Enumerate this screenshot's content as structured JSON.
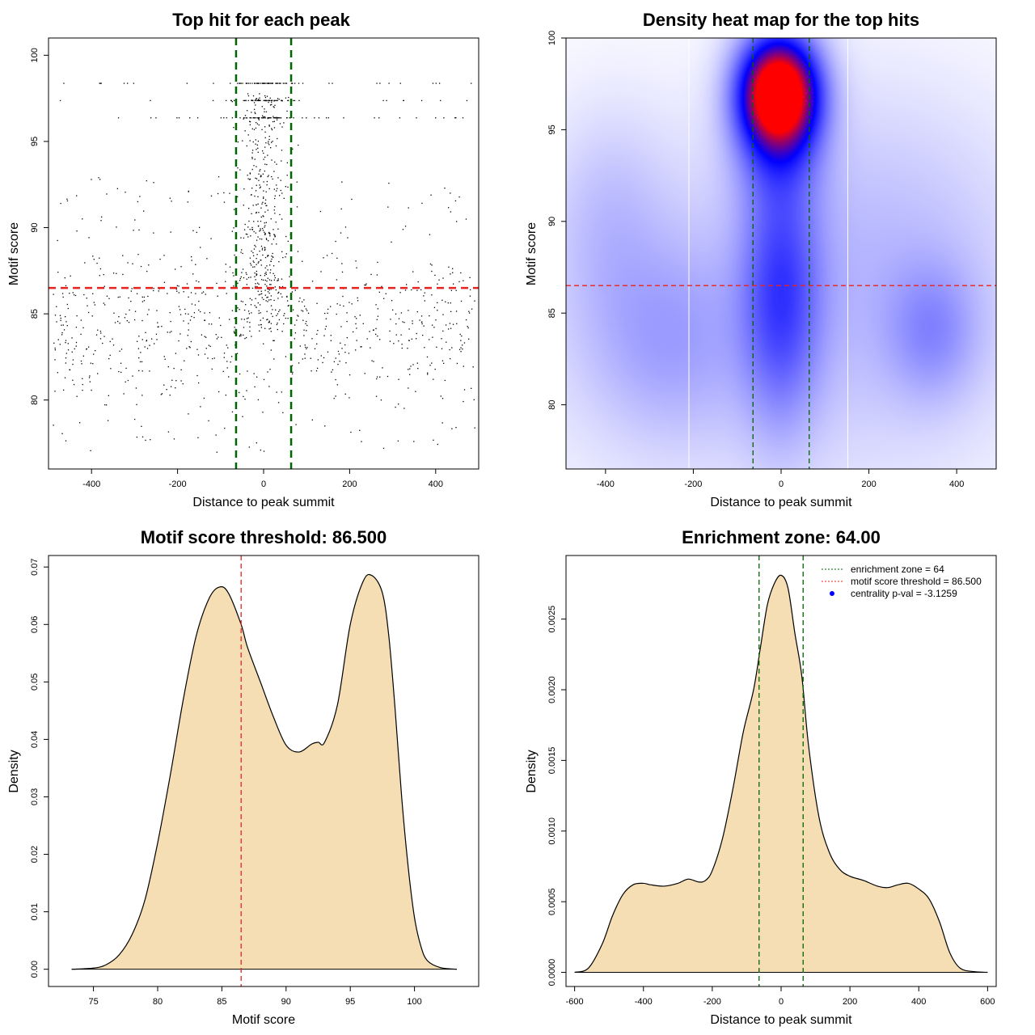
{
  "chart_data": [
    {
      "id": "scatter",
      "type": "scatter",
      "title": "Top hit for each peak",
      "xlabel": "Distance to peak summit",
      "ylabel": "Motif score",
      "xlim": [
        -500,
        500
      ],
      "ylim": [
        76,
        101
      ],
      "xticks": [
        -400,
        -200,
        0,
        200,
        400
      ],
      "yticks": [
        80,
        85,
        90,
        95,
        100
      ],
      "xtick_labels": [
        "-400",
        "-200",
        "0",
        "200",
        "400"
      ],
      "ytick_labels": [
        "80",
        "85",
        "90",
        "95",
        "100"
      ],
      "vlines": [
        -64,
        64
      ],
      "hline": 86.5,
      "point_model": {
        "n_points": 1500,
        "x_range": [
          -490,
          490
        ],
        "y_background_range": [
          77,
          93
        ],
        "central_cluster_x_range": [
          -64,
          64
        ],
        "central_cluster_y_range": [
          84,
          98
        ],
        "high_score_rows": [
          96.4,
          97.4,
          98.4
        ],
        "seed": 7
      },
      "colors": {
        "points": "#000000",
        "vlines": "#006400",
        "hline": "#e8231f"
      }
    },
    {
      "id": "heatmap",
      "type": "heatmap",
      "title": "Density heat map for the top hits",
      "xlabel": "Distance to peak summit",
      "ylabel": "Motif score",
      "xlim": [
        -490,
        490
      ],
      "ylim": [
        76.5,
        100
      ],
      "xticks": [
        -400,
        -200,
        0,
        200,
        400
      ],
      "yticks": [
        80,
        85,
        90,
        95,
        100
      ],
      "xtick_labels": [
        "-400",
        "-200",
        "0",
        "200",
        "400"
      ],
      "ytick_labels": [
        "80",
        "85",
        "90",
        "95",
        "100"
      ],
      "vlines": [
        -64,
        64
      ],
      "white_vlines": [
        -210,
        152
      ],
      "hline": 86.5,
      "density_blobs": [
        {
          "x": -5,
          "y": 97,
          "sx": 55,
          "sy": 1.8,
          "w": 1.0
        },
        {
          "x": -5,
          "y": 96,
          "sx": 65,
          "sy": 3.0,
          "w": 0.45
        },
        {
          "x": 0,
          "y": 86,
          "sx": 60,
          "sy": 4.5,
          "w": 0.32
        },
        {
          "x": 345,
          "y": 84,
          "sx": 70,
          "sy": 2.5,
          "w": 0.14
        },
        {
          "x": -260,
          "y": 83.5,
          "sx": 120,
          "sy": 3.5,
          "w": 0.1
        },
        {
          "x": -390,
          "y": 90,
          "sx": 90,
          "sy": 4.0,
          "w": 0.07
        },
        {
          "x": 250,
          "y": 89,
          "sx": 200,
          "sy": 6.0,
          "w": 0.05
        },
        {
          "x": 0,
          "y": 85,
          "sx": 420,
          "sy": 7.0,
          "w": 0.08
        }
      ],
      "colors": {
        "low": "#ffffff",
        "mid": "#0000ff",
        "high": "#ff0000",
        "vlines": "#006400",
        "hline": "#e8231f",
        "white_lines": "#ffffff"
      }
    },
    {
      "id": "density_score",
      "type": "area",
      "title": "Motif score threshold: 86.500",
      "xlabel": "Motif score",
      "ylabel": "Density",
      "xlim": [
        71.5,
        105
      ],
      "ylim": [
        -0.003,
        0.072
      ],
      "xticks": [
        75,
        80,
        85,
        90,
        95,
        100
      ],
      "yticks": [
        0,
        0.01,
        0.02,
        0.03,
        0.04,
        0.05,
        0.06,
        0.07
      ],
      "xtick_labels": [
        "75",
        "80",
        "85",
        "90",
        "95",
        "100"
      ],
      "ytick_labels": [
        "0.00",
        "0.01",
        "0.02",
        "0.03",
        "0.04",
        "0.05",
        "0.06",
        "0.07"
      ],
      "x": [
        73.3,
        75,
        76,
        77,
        78,
        79,
        80,
        81,
        82,
        83,
        84,
        84.8,
        85.5,
        86.5,
        87,
        88,
        89,
        90,
        91,
        92,
        92.5,
        93,
        94,
        95,
        96,
        96.7,
        97.5,
        98,
        98.5,
        99,
        99.5,
        100,
        100.5,
        101,
        102,
        103.3
      ],
      "y": [
        0,
        0.0002,
        0.0008,
        0.0025,
        0.006,
        0.012,
        0.022,
        0.034,
        0.047,
        0.058,
        0.0645,
        0.0665,
        0.0655,
        0.06,
        0.056,
        0.05,
        0.044,
        0.039,
        0.0378,
        0.0392,
        0.0395,
        0.0395,
        0.046,
        0.06,
        0.0675,
        0.0685,
        0.0655,
        0.058,
        0.045,
        0.03,
        0.018,
        0.009,
        0.004,
        0.0015,
        0.0003,
        0
      ],
      "vline": 86.5,
      "colors": {
        "fill": "#f5deb3",
        "line": "#000000",
        "vline": "#e8231f"
      }
    },
    {
      "id": "density_distance",
      "type": "area",
      "title": "Enrichment zone: 64.00",
      "xlabel": "Distance to peak summit",
      "ylabel": "Density",
      "xlim": [
        -625,
        625
      ],
      "ylim": [
        -0.0001,
        0.00295
      ],
      "xticks": [
        -600,
        -400,
        -200,
        0,
        200,
        400,
        600
      ],
      "yticks": [
        0,
        0.0005,
        0.001,
        0.0015,
        0.002,
        0.0025
      ],
      "xtick_labels": [
        "-600",
        "-400",
        "-200",
        "0",
        "200",
        "400",
        "600"
      ],
      "ytick_labels": [
        "0.0000",
        "0.0005",
        "0.0010",
        "0.0015",
        "0.0020",
        "0.0025"
      ],
      "x": [
        -600,
        -560,
        -520,
        -490,
        -460,
        -430,
        -400,
        -380,
        -340,
        -300,
        -270,
        -240,
        -220,
        -200,
        -170,
        -140,
        -110,
        -80,
        -60,
        -40,
        -20,
        0,
        20,
        40,
        60,
        80,
        110,
        140,
        170,
        200,
        240,
        280,
        310,
        340,
        370,
        400,
        430,
        460,
        490,
        520,
        560,
        600
      ],
      "y": [
        0,
        3e-05,
        0.0002,
        0.0004,
        0.00055,
        0.00062,
        0.00063,
        0.00062,
        0.00061,
        0.00063,
        0.00066,
        0.00064,
        0.00065,
        0.00072,
        0.00095,
        0.0013,
        0.0017,
        0.002,
        0.0023,
        0.0026,
        0.00275,
        0.00281,
        0.00272,
        0.0024,
        0.0021,
        0.0016,
        0.0011,
        0.00085,
        0.00073,
        0.00068,
        0.00065,
        0.00061,
        0.0006,
        0.00062,
        0.00063,
        0.00059,
        0.00052,
        0.00036,
        0.00014,
        3e-05,
        5e-06,
        0
      ],
      "vlines": [
        -64,
        64
      ],
      "legend": [
        {
          "label": "enrichment zone = 64",
          "kind": "line",
          "color": "#006400"
        },
        {
          "label": "motif score threshold = 86.500",
          "kind": "line",
          "color": "#e8231f"
        },
        {
          "label": "centrality p-val = -3.1259",
          "kind": "point",
          "color": "#0000ff"
        }
      ],
      "legend_position": "top-right",
      "colors": {
        "fill": "#f5deb3",
        "line": "#000000",
        "vlines": "#006400"
      }
    }
  ]
}
